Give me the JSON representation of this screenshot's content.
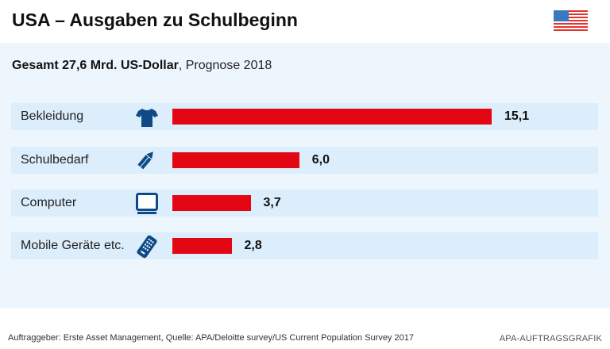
{
  "header": {
    "title": "USA – Ausgaben zu Schulbeginn",
    "flag_icon": "us-flag-icon"
  },
  "subtitle": {
    "bold": "Gesamt 27,6 Mrd. US-Dollar",
    "rest": ", Prognose 2018"
  },
  "colors": {
    "bar": "#e30613",
    "icon": "#0d4a86",
    "panel": "#eef6fd",
    "row": "#dcedfb"
  },
  "chart_data": {
    "type": "bar",
    "orientation": "horizontal",
    "title": "USA – Ausgaben zu Schulbeginn",
    "subtitle": "Gesamt 27,6 Mrd. US-Dollar, Prognose 2018",
    "unit": "Mrd. US-Dollar",
    "categories": [
      "Bekleidung",
      "Schulbedarf",
      "Computer",
      "Mobile Geräte etc."
    ],
    "values": [
      15.1,
      6.0,
      3.7,
      2.8
    ],
    "value_labels": [
      "15,1",
      "6,0",
      "3,7",
      "2,8"
    ],
    "icons": [
      "t-shirt-icon",
      "pencil-icon",
      "monitor-icon",
      "mobile-phone-icon"
    ],
    "xlabel": "",
    "ylabel": "",
    "xlim": [
      0,
      15.1
    ],
    "grid": false,
    "legend": "none"
  },
  "footer": {
    "source": "Auftraggeber: Erste Asset Management, Quelle: APA/Deloitte survey/US Current Population Survey 2017",
    "credit": "APA-AUFTRAGSGRAFIK"
  }
}
